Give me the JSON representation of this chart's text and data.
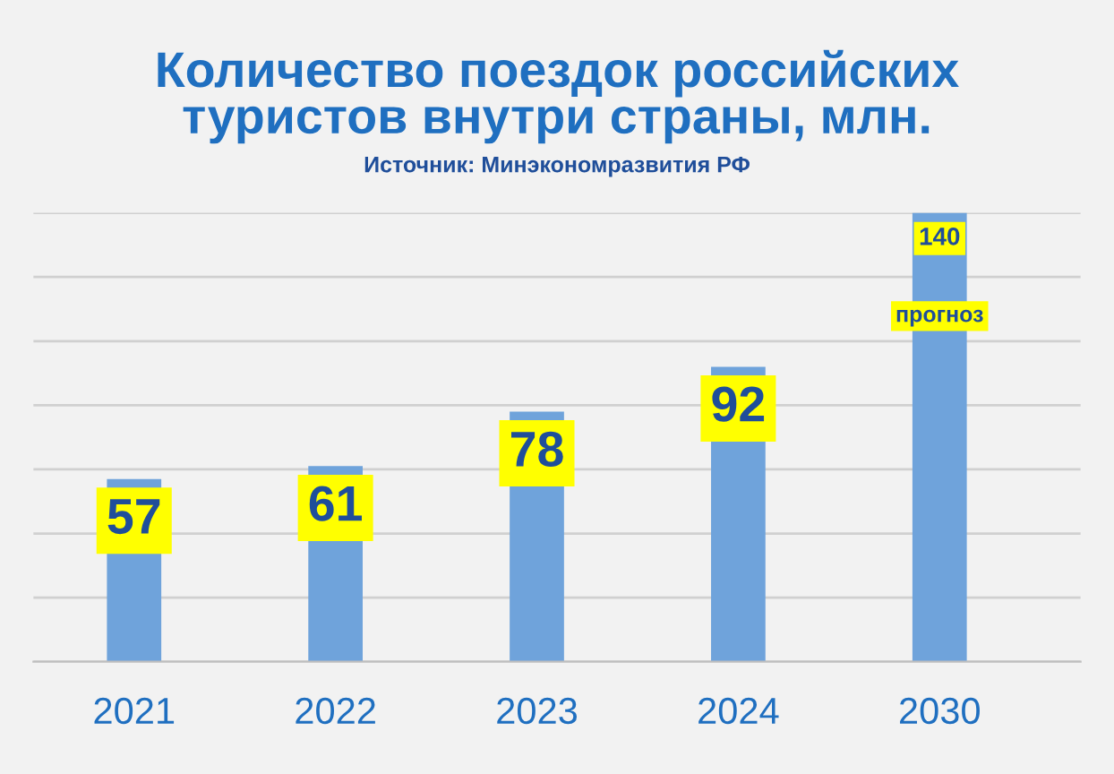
{
  "chart_data": {
    "type": "bar",
    "title": "Количество поездок российских\nтуристов внутри страны, млн.",
    "subtitle": "Источник: Минэкономразвития РФ",
    "categories": [
      "2021",
      "2022",
      "2023",
      "2024",
      "2030"
    ],
    "values": [
      57,
      61,
      78,
      92,
      140
    ],
    "color": "#6fa3db",
    "ylim": [
      0,
      140
    ],
    "yticks": [
      {
        "value": 0,
        "label": null
      },
      {
        "value": 20,
        "label": null
      },
      {
        "value": 40,
        "label": null
      },
      {
        "value": 60,
        "label": null
      },
      {
        "value": 80,
        "label": null
      },
      {
        "value": 100,
        "label": null
      },
      {
        "value": 120,
        "label": null
      },
      {
        "value": 140,
        "label": null
      }
    ],
    "tick_labels": "x",
    "grid": "y",
    "data_labels": true,
    "legend": false,
    "annotations": [
      "прогноз"
    ]
  }
}
